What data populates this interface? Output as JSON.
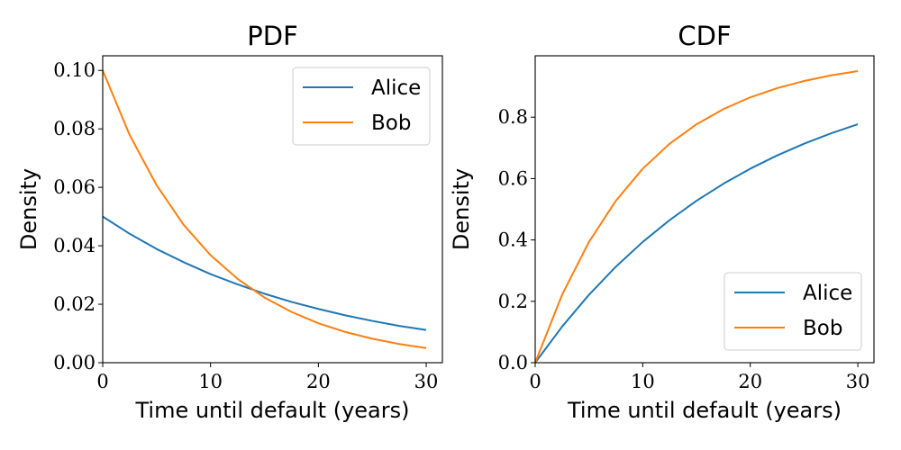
{
  "chart_data": [
    {
      "type": "line",
      "title": "PDF",
      "xlabel": "Time until default (years)",
      "ylabel": "Density",
      "xlim": [
        0,
        31.5
      ],
      "ylim": [
        0,
        0.105
      ],
      "xticks": [
        0,
        10,
        20,
        30
      ],
      "xtick_labels": [
        "0",
        "10",
        "20",
        "30"
      ],
      "yticks": [
        0,
        0.02,
        0.04,
        0.06,
        0.08,
        0.1
      ],
      "ytick_labels": [
        "0.00",
        "0.02",
        "0.04",
        "0.06",
        "0.08",
        "0.10"
      ],
      "grid": false,
      "legend_position": "upper-right",
      "x": [
        0,
        2.5,
        5,
        7.5,
        10,
        12.5,
        15,
        17.5,
        20,
        22.5,
        25,
        27.5,
        30
      ],
      "series": [
        {
          "name": "Alice",
          "color": "#1f77b4",
          "values": [
            0.05,
            0.0441,
            0.0389,
            0.0344,
            0.0303,
            0.0268,
            0.0236,
            0.0208,
            0.0184,
            0.0162,
            0.0143,
            0.0126,
            0.0112
          ]
        },
        {
          "name": "Bob",
          "color": "#ff7f0e",
          "values": [
            0.1,
            0.0779,
            0.0607,
            0.0472,
            0.0368,
            0.0287,
            0.0223,
            0.0174,
            0.0135,
            0.0105,
            0.0082,
            0.0064,
            0.005
          ]
        }
      ]
    },
    {
      "type": "line",
      "title": "CDF",
      "xlabel": "Time until default (years)",
      "ylabel": "Density",
      "xlim": [
        0,
        31.5
      ],
      "ylim": [
        0,
        1.0
      ],
      "xticks": [
        0,
        10,
        20,
        30
      ],
      "xtick_labels": [
        "0",
        "10",
        "20",
        "30"
      ],
      "yticks": [
        0,
        0.2,
        0.4,
        0.6,
        0.8
      ],
      "ytick_labels": [
        "0.0",
        "0.2",
        "0.4",
        "0.6",
        "0.8"
      ],
      "grid": false,
      "legend_position": "lower-right",
      "x": [
        0,
        2.5,
        5,
        7.5,
        10,
        12.5,
        15,
        17.5,
        20,
        22.5,
        25,
        27.5,
        30
      ],
      "series": [
        {
          "name": "Alice",
          "color": "#1f77b4",
          "values": [
            0.0,
            0.1175,
            0.2212,
            0.3127,
            0.3935,
            0.4647,
            0.5276,
            0.5831,
            0.6321,
            0.6754,
            0.7135,
            0.7471,
            0.7769
          ]
        },
        {
          "name": "Bob",
          "color": "#ff7f0e",
          "values": [
            0.0,
            0.2212,
            0.3935,
            0.5276,
            0.6321,
            0.7135,
            0.7769,
            0.8262,
            0.8647,
            0.8946,
            0.9179,
            0.9361,
            0.9502
          ]
        }
      ]
    }
  ]
}
